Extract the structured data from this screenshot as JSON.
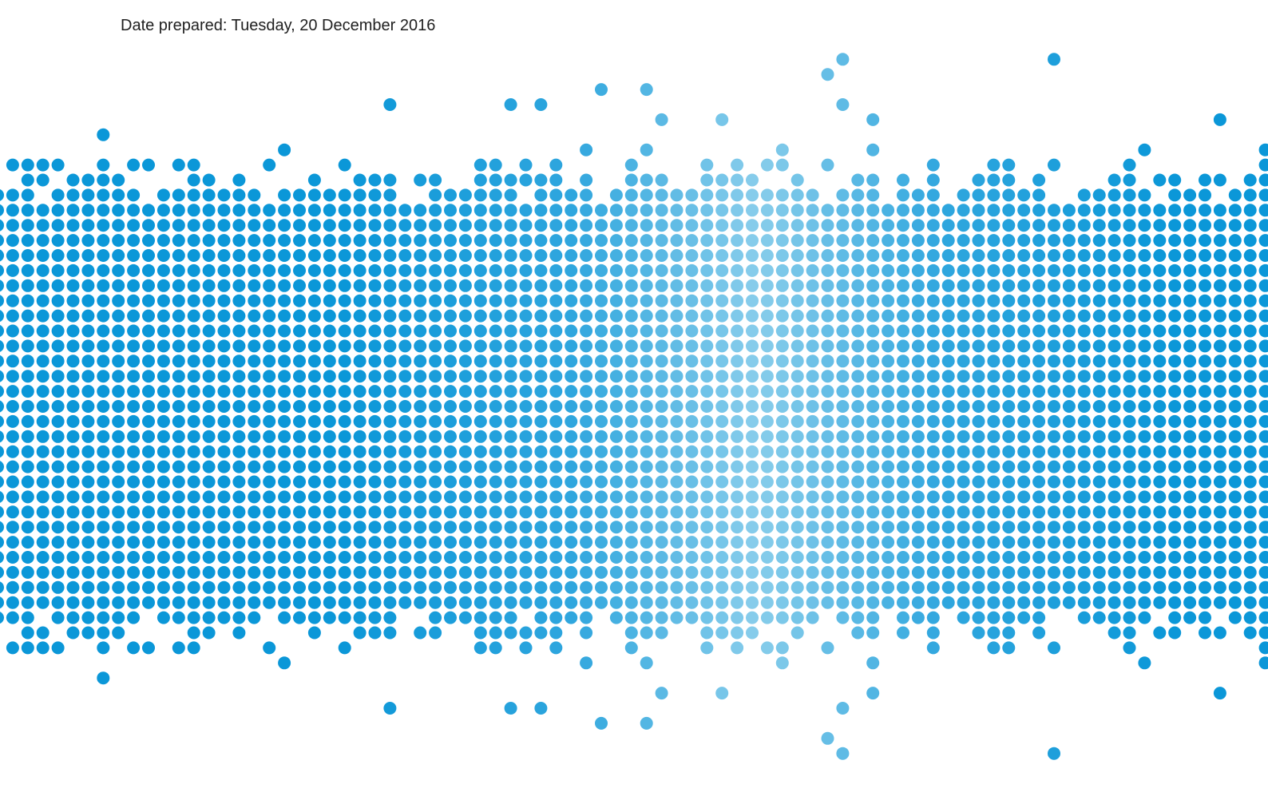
{
  "document": {
    "date_prepared": "Date prepared: Tuesday, 20 December 2016"
  },
  "pattern": {
    "name": "dot-matrix-wave",
    "colors": {
      "edge": "#0b97d8",
      "middle": "#2fa6de",
      "center": "#88cdeb"
    }
  }
}
